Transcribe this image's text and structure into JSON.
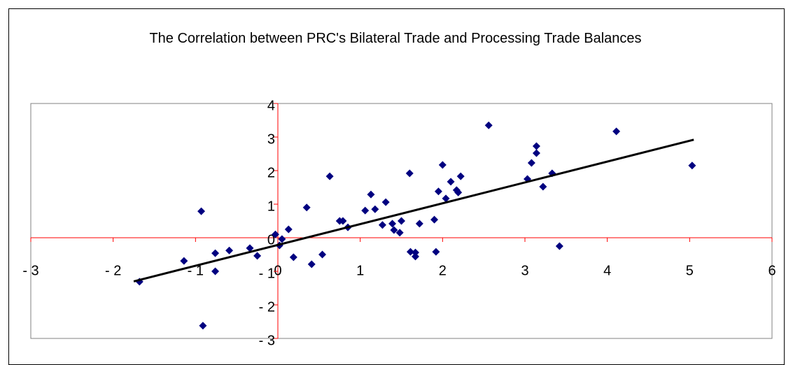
{
  "chart_data": {
    "type": "scatter",
    "title": "The Correlation between PRC's Bilateral Trade and Processing Trade Balances",
    "x": [
      -1.68,
      -1.14,
      -0.93,
      -0.91,
      -0.76,
      -0.76,
      -0.59,
      -0.34,
      -0.25,
      -0.03,
      0.02,
      0.05,
      0.13,
      0.19,
      0.35,
      0.41,
      0.54,
      0.63,
      0.75,
      0.79,
      0.85,
      1.06,
      1.13,
      1.18,
      1.27,
      1.31,
      1.39,
      1.41,
      1.48,
      1.5,
      1.6,
      1.61,
      1.67,
      1.67,
      1.72,
      1.9,
      1.92,
      1.95,
      2.0,
      2.04,
      2.1,
      2.17,
      2.19,
      2.22,
      2.56,
      3.03,
      3.08,
      3.14,
      3.14,
      3.22,
      3.33,
      3.42,
      4.11,
      5.03
    ],
    "values": [
      -1.31,
      -0.69,
      0.79,
      -2.62,
      -0.46,
      -1.0,
      -0.38,
      -0.31,
      -0.54,
      0.1,
      -0.23,
      -0.04,
      0.25,
      -0.58,
      0.9,
      -0.79,
      -0.5,
      1.83,
      0.5,
      0.5,
      0.31,
      0.81,
      1.29,
      0.85,
      0.38,
      1.06,
      0.42,
      0.23,
      0.15,
      0.5,
      1.92,
      -0.42,
      -0.56,
      -0.44,
      0.42,
      0.54,
      -0.42,
      1.38,
      2.17,
      1.17,
      1.67,
      1.42,
      1.35,
      1.83,
      3.35,
      1.75,
      2.23,
      2.73,
      2.52,
      1.52,
      1.92,
      -0.25,
      3.17,
      2.15
    ],
    "color": "#000080",
    "trendline": {
      "x": [
        -1.75,
        5.05
      ],
      "y": [
        -1.3,
        2.92
      ],
      "color": "#000000"
    },
    "xlim": [
      -3,
      6
    ],
    "xticks": [
      {
        "value": -3,
        "label": "- 3"
      },
      {
        "value": -2,
        "label": "- 2"
      },
      {
        "value": -1,
        "label": "- 1"
      },
      0,
      1,
      2,
      3,
      4,
      5,
      6
    ],
    "ylim": [
      -3,
      4
    ],
    "yticks": [
      {
        "value": -3,
        "label": "- 3"
      },
      {
        "value": -2,
        "label": "- 2"
      },
      {
        "value": -1,
        "label": "- 1"
      },
      0,
      1,
      2,
      3,
      4
    ],
    "axis_color": "#ff0000"
  }
}
